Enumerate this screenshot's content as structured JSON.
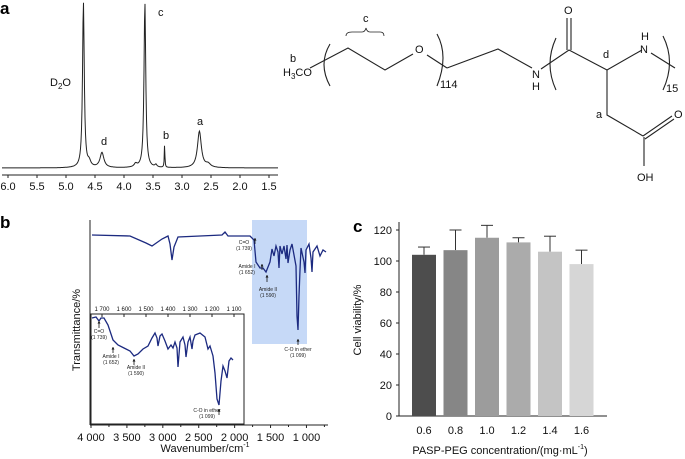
{
  "panels": {
    "a": "a",
    "b": "b",
    "c": "c"
  },
  "chart_data": [
    {
      "id": "nmr",
      "type": "line",
      "title": "",
      "xlabel": "",
      "ylabel": "",
      "xlim": [
        6.0,
        1.5
      ],
      "x_ticks": [
        "6.0",
        "5.5",
        "5.0",
        "4.5",
        "4.0",
        "3.5",
        "3.0",
        "2.5",
        "2.0",
        "1.5"
      ],
      "peaks": [
        {
          "label": "D₂O",
          "ppm": 4.7,
          "rel_height": 1.0
        },
        {
          "label": "d",
          "ppm": 4.38,
          "rel_height": 0.09
        },
        {
          "label": "c",
          "ppm": 3.64,
          "rel_height": 1.0
        },
        {
          "label": "b",
          "ppm": 3.3,
          "rel_height": 0.14
        },
        {
          "label": "a",
          "ppm": 2.7,
          "rel_height": 0.22
        }
      ],
      "peak_labels": {
        "d2o": "D",
        "d2o_sub": "2",
        "d2o_tail": "O",
        "a": "a",
        "b": "b",
        "c": "c",
        "d": "d"
      }
    },
    {
      "id": "ftir",
      "type": "line",
      "xlabel": "Wavenumber/cm",
      "xlabel_sup": "-1",
      "ylabel": "Transmittance/%",
      "xlim": [
        4000,
        700
      ],
      "x_ticks": [
        "4 000",
        "3 500",
        "3 000",
        "2 500",
        "2 000",
        "1 500",
        "1 000"
      ],
      "inset_x_ticks": [
        "1 700",
        "1 600",
        "1 500",
        "1 400",
        "1 300",
        "1 200",
        "1 100"
      ],
      "highlight_range": [
        1800,
        1050
      ],
      "highlight_color": "#c6d9f7",
      "line_color": "#1c2a80",
      "annotations": [
        {
          "label": "C=O",
          "value": "(1 739)"
        },
        {
          "label": "Amide I",
          "value": "(1 652)"
        },
        {
          "label": "Amide II",
          "value": "(1 590)"
        },
        {
          "label": "C-O in ether",
          "value": "(1 099)"
        }
      ]
    },
    {
      "id": "viability",
      "type": "bar",
      "title": "",
      "xlabel": "PASP-PEG concentration/(mg·mL",
      "xlabel_sup": "-1",
      "xlabel_tail": ")",
      "ylabel": "Cell viability/%",
      "ylim": [
        0,
        120
      ],
      "y_ticks": [
        "0",
        "20",
        "40",
        "60",
        "80",
        "100",
        "120"
      ],
      "categories": [
        "0.6",
        "0.8",
        "1.0",
        "1.2",
        "1.4",
        "1.6"
      ],
      "values": [
        104,
        107,
        115,
        112,
        106,
        98
      ],
      "errors": [
        5,
        13,
        8,
        3,
        10,
        9
      ],
      "colors": [
        "#4d4d4d",
        "#868686",
        "#9c9c9c",
        "#ababab",
        "#c4c4c4",
        "#d6d6d6"
      ]
    }
  ],
  "structure": {
    "methoxy": "H₃CO",
    "label_b": "b",
    "label_c": "c",
    "label_d": "d",
    "label_a": "a",
    "oxygen": "O",
    "n_peg": "114",
    "n_pasp": "15",
    "nh_n": "N",
    "nh_h": "H",
    "carbonyl_o": "O",
    "acid_o": "O",
    "acid_oh": "OH"
  }
}
